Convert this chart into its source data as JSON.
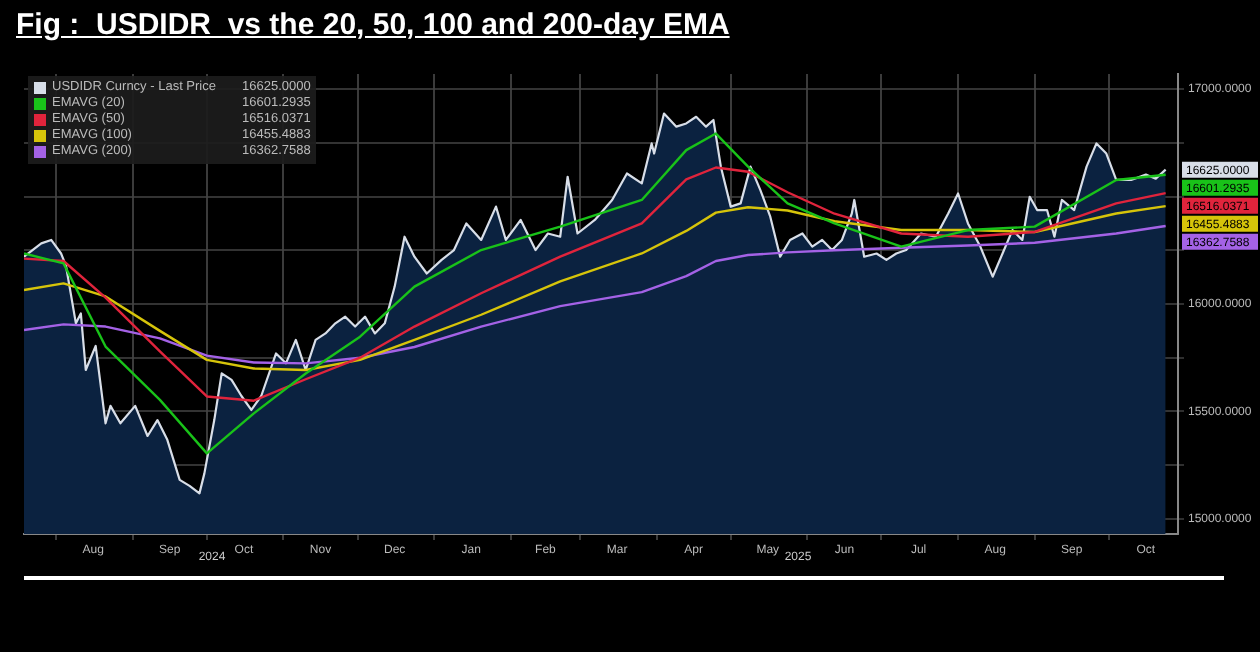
{
  "chart_data": {
    "type": "line",
    "title": "Fig :  USDIDR  vs the 20, 50, 100 and 200-day EMA",
    "x": [
      "2024-07-19",
      "2024-08-04",
      "2024-08-21",
      "2024-09-12",
      "2024-10-01",
      "2024-10-20",
      "2024-11-10",
      "2024-12-02",
      "2024-12-24",
      "2025-01-20",
      "2025-02-21",
      "2025-03-26",
      "2025-04-13",
      "2025-04-25",
      "2025-05-08",
      "2025-05-24",
      "2025-06-12",
      "2025-07-09",
      "2025-08-05",
      "2025-09-01",
      "2025-10-04",
      "2025-10-24"
    ],
    "series": [
      {
        "name": "USDIDR Curncy - Last Price",
        "type": "area",
        "color": "#d8dee8",
        "x": [
          "2024-07-19",
          "2024-07-26",
          "2024-07-30",
          "2024-08-03",
          "2024-08-05",
          "2024-08-09",
          "2024-08-11",
          "2024-08-13",
          "2024-08-17",
          "2024-08-21",
          "2024-08-23",
          "2024-08-27",
          "2024-09-02",
          "2024-09-07",
          "2024-09-11",
          "2024-09-15",
          "2024-09-20",
          "2024-09-24",
          "2024-09-28",
          "2024-09-30",
          "2024-10-04",
          "2024-10-07",
          "2024-10-11",
          "2024-10-15",
          "2024-10-19",
          "2024-10-23",
          "2024-10-29",
          "2024-11-02",
          "2024-11-06",
          "2024-11-10",
          "2024-11-14",
          "2024-11-18",
          "2024-11-22",
          "2024-11-26",
          "2024-11-30",
          "2024-12-04",
          "2024-12-08",
          "2024-12-12",
          "2024-12-16",
          "2024-12-20",
          "2024-12-24",
          "2024-12-29",
          "2025-01-04",
          "2025-01-09",
          "2025-01-14",
          "2025-01-20",
          "2025-01-26",
          "2025-01-30",
          "2025-02-05",
          "2025-02-11",
          "2025-02-16",
          "2025-02-21",
          "2025-02-24",
          "2025-02-28",
          "2025-03-07",
          "2025-03-14",
          "2025-03-20",
          "2025-03-26",
          "2025-03-30",
          "2025-03-31",
          "2025-04-04",
          "2025-04-09",
          "2025-04-13",
          "2025-04-17",
          "2025-04-21",
          "2025-04-24",
          "2025-04-27",
          "2025-05-01",
          "2025-05-05",
          "2025-05-09",
          "2025-05-13",
          "2025-05-17",
          "2025-05-21",
          "2025-05-25",
          "2025-05-30",
          "2025-06-03",
          "2025-06-07",
          "2025-06-11",
          "2025-06-15",
          "2025-06-19",
          "2025-06-20",
          "2025-06-24",
          "2025-06-29",
          "2025-07-03",
          "2025-07-07",
          "2025-07-11",
          "2025-07-17",
          "2025-07-23",
          "2025-07-28",
          "2025-08-01",
          "2025-08-05",
          "2025-08-10",
          "2025-08-15",
          "2025-08-19",
          "2025-08-23",
          "2025-08-27",
          "2025-08-30",
          "2025-09-02",
          "2025-09-06",
          "2025-09-09",
          "2025-09-12",
          "2025-09-17",
          "2025-09-22",
          "2025-09-26",
          "2025-09-30",
          "2025-10-04",
          "2025-10-10",
          "2025-10-16",
          "2025-10-20",
          "2025-10-24"
        ],
        "values": [
          16220,
          16282,
          16298,
          16235,
          16177,
          15910,
          15956,
          15693,
          15805,
          15445,
          15526,
          15445,
          15526,
          15386,
          15460,
          15368,
          15182,
          15154,
          15119,
          15212,
          15460,
          15677,
          15647,
          15572,
          15507,
          15572,
          15770,
          15724,
          15833,
          15693,
          15833,
          15863,
          15910,
          15941,
          15895,
          15941,
          15863,
          15910,
          16081,
          16313,
          16220,
          16142,
          16205,
          16251,
          16375,
          16298,
          16453,
          16298,
          16391,
          16251,
          16328,
          16313,
          16592,
          16328,
          16391,
          16484,
          16607,
          16561,
          16747,
          16700,
          16886,
          16825,
          16840,
          16871,
          16825,
          16856,
          16639,
          16453,
          16468,
          16639,
          16530,
          16406,
          16220,
          16298,
          16328,
          16267,
          16298,
          16251,
          16298,
          16421,
          16484,
          16220,
          16235,
          16205,
          16235,
          16251,
          16328,
          16313,
          16421,
          16514,
          16375,
          16267,
          16127,
          16235,
          16344,
          16298,
          16499,
          16437,
          16437,
          16313,
          16484,
          16437,
          16639,
          16747,
          16700,
          16577,
          16577,
          16602,
          16583,
          16625
        ],
        "value_labels": [
          null,
          null,
          null,
          null,
          null,
          null,
          null,
          null,
          null,
          null,
          null,
          null,
          null,
          null,
          null,
          null,
          null,
          null,
          null,
          null,
          null,
          null,
          null,
          null,
          null,
          null,
          null,
          null,
          null,
          null,
          null,
          null,
          null,
          null,
          null,
          null,
          null,
          null,
          null,
          null,
          null,
          null,
          null,
          null,
          null,
          null,
          null,
          null,
          null,
          null,
          null,
          null,
          null,
          null,
          null,
          null,
          null,
          null,
          null,
          null,
          null,
          null,
          null,
          null,
          null,
          null,
          null,
          null,
          null,
          null,
          null,
          null,
          null,
          null,
          null,
          null,
          null,
          null,
          null,
          null,
          null,
          null,
          null,
          null,
          null,
          null,
          null,
          null,
          null,
          null,
          null,
          null,
          null,
          null,
          null,
          null,
          null,
          null,
          null,
          null,
          null,
          null,
          null,
          null,
          null,
          null,
          null,
          null,
          null,
          "16625.0000"
        ]
      },
      {
        "name": "EMAVG (20)",
        "color": "#19c219",
        "values": [
          16235,
          16189,
          15802,
          15554,
          15305,
          15491,
          15677,
          15848,
          16081,
          16251,
          16360,
          16484,
          16716,
          16793,
          16639,
          16468,
          16375,
          16267,
          16344,
          16360,
          16577,
          16601.2935
        ],
        "value_labels": [
          null,
          null,
          null,
          null,
          null,
          null,
          null,
          null,
          null,
          null,
          null,
          null,
          null,
          null,
          null,
          null,
          null,
          null,
          null,
          null,
          null,
          "16601.2935"
        ]
      },
      {
        "name": "EMAVG (50)",
        "color": "#e0243c",
        "values": [
          16211,
          16200,
          16030,
          15780,
          15570,
          15550,
          15650,
          15750,
          15895,
          16050,
          16220,
          16375,
          16580,
          16635,
          16615,
          16520,
          16420,
          16328,
          16313,
          16335,
          16468,
          16516.0371
        ],
        "value_labels": [
          null,
          null,
          null,
          null,
          null,
          null,
          null,
          null,
          null,
          null,
          null,
          null,
          null,
          null,
          null,
          null,
          null,
          null,
          null,
          null,
          null,
          "16516.0371"
        ]
      },
      {
        "name": "EMAVG (100)",
        "color": "#d6c40a",
        "values": [
          16065,
          16096,
          16035,
          15875,
          15740,
          15700,
          15693,
          15740,
          15833,
          15950,
          16105,
          16235,
          16340,
          16425,
          16450,
          16435,
          16385,
          16344,
          16344,
          16335,
          16421,
          16455.4883
        ],
        "value_labels": [
          null,
          null,
          null,
          null,
          null,
          null,
          null,
          null,
          null,
          null,
          null,
          null,
          null,
          null,
          null,
          null,
          null,
          null,
          null,
          null,
          null,
          "16455.4883"
        ]
      },
      {
        "name": "EMAVG (200)",
        "color": "#a462e6",
        "values": [
          15879,
          15905,
          15895,
          15840,
          15760,
          15728,
          15724,
          15750,
          15800,
          15895,
          15990,
          16055,
          16130,
          16200,
          16228,
          16240,
          16250,
          16262,
          16272,
          16285,
          16328,
          16362.7588
        ],
        "value_labels": [
          null,
          null,
          null,
          null,
          null,
          null,
          null,
          null,
          null,
          null,
          null,
          null,
          null,
          null,
          null,
          null,
          null,
          null,
          null,
          null,
          null,
          "16362.7588"
        ]
      }
    ],
    "xlim": [
      "2024-07-19",
      "2025-10-29"
    ],
    "xticks": [
      {
        "value": "2024-08-01",
        "label": null
      },
      {
        "value": "2024-08-16",
        "label": "Aug"
      },
      {
        "value": "2024-09-01",
        "label": null
      },
      {
        "value": "2024-09-16",
        "label": "Sep"
      },
      {
        "value": "2024-10-01",
        "label": null
      },
      {
        "value": "2024-10-16",
        "label": "Oct"
      },
      {
        "value": "2024-11-01",
        "label": null
      },
      {
        "value": "2024-11-16",
        "label": "Nov"
      },
      {
        "value": "2024-12-01",
        "label": null
      },
      {
        "value": "2024-12-16",
        "label": "Dec"
      },
      {
        "value": "2025-01-01",
        "label": null
      },
      {
        "value": "2025-01-16",
        "label": "Jan"
      },
      {
        "value": "2025-02-01",
        "label": null
      },
      {
        "value": "2025-02-15",
        "label": "Feb"
      },
      {
        "value": "2025-03-01",
        "label": null
      },
      {
        "value": "2025-03-16",
        "label": "Mar"
      },
      {
        "value": "2025-04-01",
        "label": null
      },
      {
        "value": "2025-04-16",
        "label": "Apr"
      },
      {
        "value": "2025-05-01",
        "label": null
      },
      {
        "value": "2025-05-16",
        "label": "May"
      },
      {
        "value": "2025-06-01",
        "label": null
      },
      {
        "value": "2025-06-16",
        "label": "Jun"
      },
      {
        "value": "2025-07-01",
        "label": null
      },
      {
        "value": "2025-07-16",
        "label": "Jul"
      },
      {
        "value": "2025-08-01",
        "label": null
      },
      {
        "value": "2025-08-16",
        "label": "Aug"
      },
      {
        "value": "2025-09-01",
        "label": null
      },
      {
        "value": "2025-09-16",
        "label": "Sep"
      },
      {
        "value": "2025-10-01",
        "label": null
      },
      {
        "value": "2025-10-16",
        "label": "Oct"
      }
    ],
    "ylim": [
      14930,
      17070
    ],
    "yticks": [
      {
        "value": 15000,
        "label": "15000.0000"
      },
      {
        "value": 15250,
        "label": null
      },
      {
        "value": 15500,
        "label": "15500.0000"
      },
      {
        "value": 15750,
        "label": null
      },
      {
        "value": 16000,
        "label": "16000.0000"
      },
      {
        "value": 16250,
        "label": null
      },
      {
        "value": 16500,
        "label": null
      },
      {
        "value": 16750,
        "label": null
      },
      {
        "value": 17000,
        "label": "17000.0000"
      }
    ],
    "annotations": [
      "2024",
      "2025"
    ],
    "grid": true,
    "legend": "top left",
    "marker": "none",
    "line_style": "solid"
  }
}
